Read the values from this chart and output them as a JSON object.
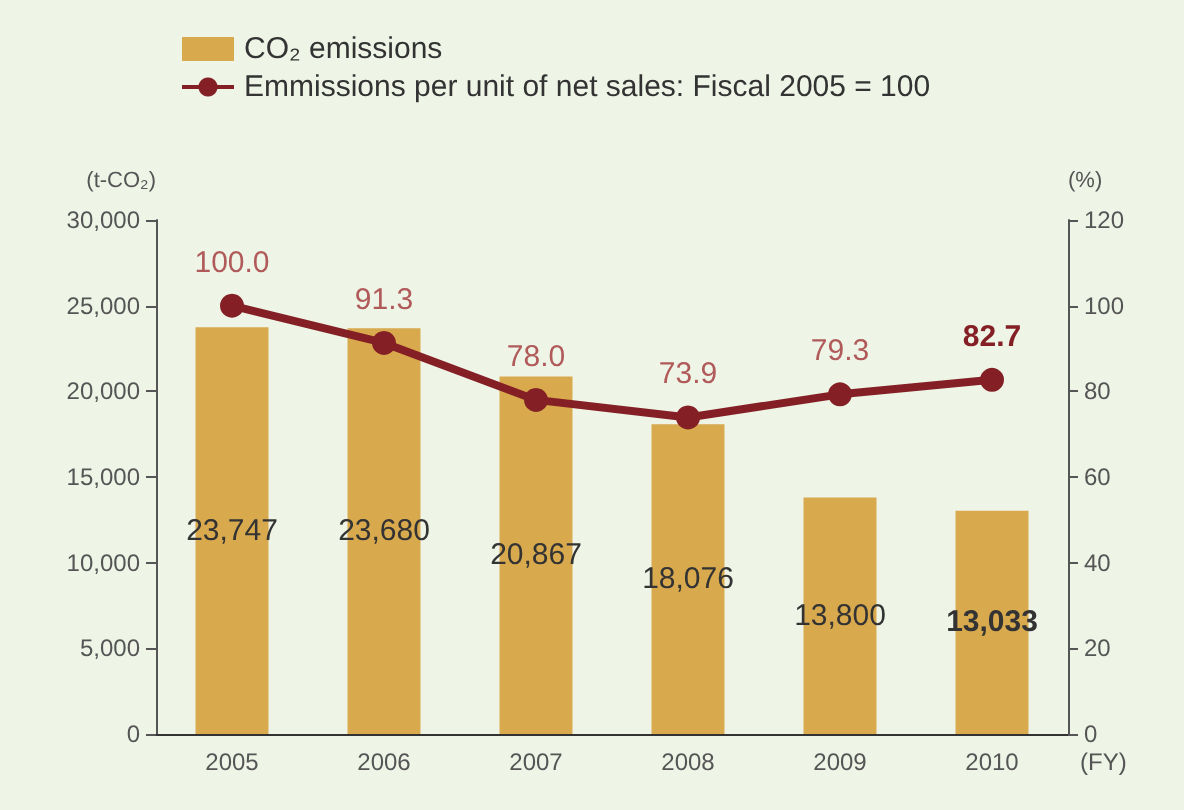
{
  "chart_data": {
    "type": "bar",
    "categories": [
      "2005",
      "2006",
      "2007",
      "2008",
      "2009",
      "2010"
    ],
    "series": [
      {
        "name": "CO₂ emissions",
        "color": "#d9a94e",
        "values": [
          23747,
          23680,
          20867,
          18076,
          13800,
          13033
        ],
        "value_labels": [
          "23,747",
          "23,680",
          "20,867",
          "18,076",
          "13,800",
          "13,033"
        ]
      },
      {
        "name": "Emmissions per unit of net sales: Fiscal 2005 = 100",
        "type": "line",
        "axis": "y2",
        "color": "#842025",
        "values": [
          100.0,
          91.3,
          78.0,
          73.9,
          79.3,
          82.7
        ],
        "value_labels": [
          "100.0",
          "91.3",
          "78.0",
          "73.9",
          "79.3",
          "82.7"
        ]
      }
    ],
    "xlabel": "(FY)",
    "ylabel": "(t-CO₂)",
    "y2label": "(%)",
    "ylim": [
      0,
      30000
    ],
    "yticks": [
      0,
      {
        "value": 5000,
        "label": "5,000"
      },
      {
        "value": 10000,
        "label": "10,000"
      },
      {
        "value": 15000,
        "label": "15,000"
      },
      {
        "value": 20000,
        "label": "20,000"
      },
      {
        "value": 25000,
        "label": "25,000"
      },
      {
        "value": 30000,
        "label": "30,000"
      }
    ],
    "y2lim": [
      0,
      120
    ],
    "y2ticks": [
      0,
      20,
      40,
      60,
      80,
      100,
      120
    ],
    "grid": false,
    "legend": "top left",
    "marker": "circle",
    "line_style": "solid"
  }
}
